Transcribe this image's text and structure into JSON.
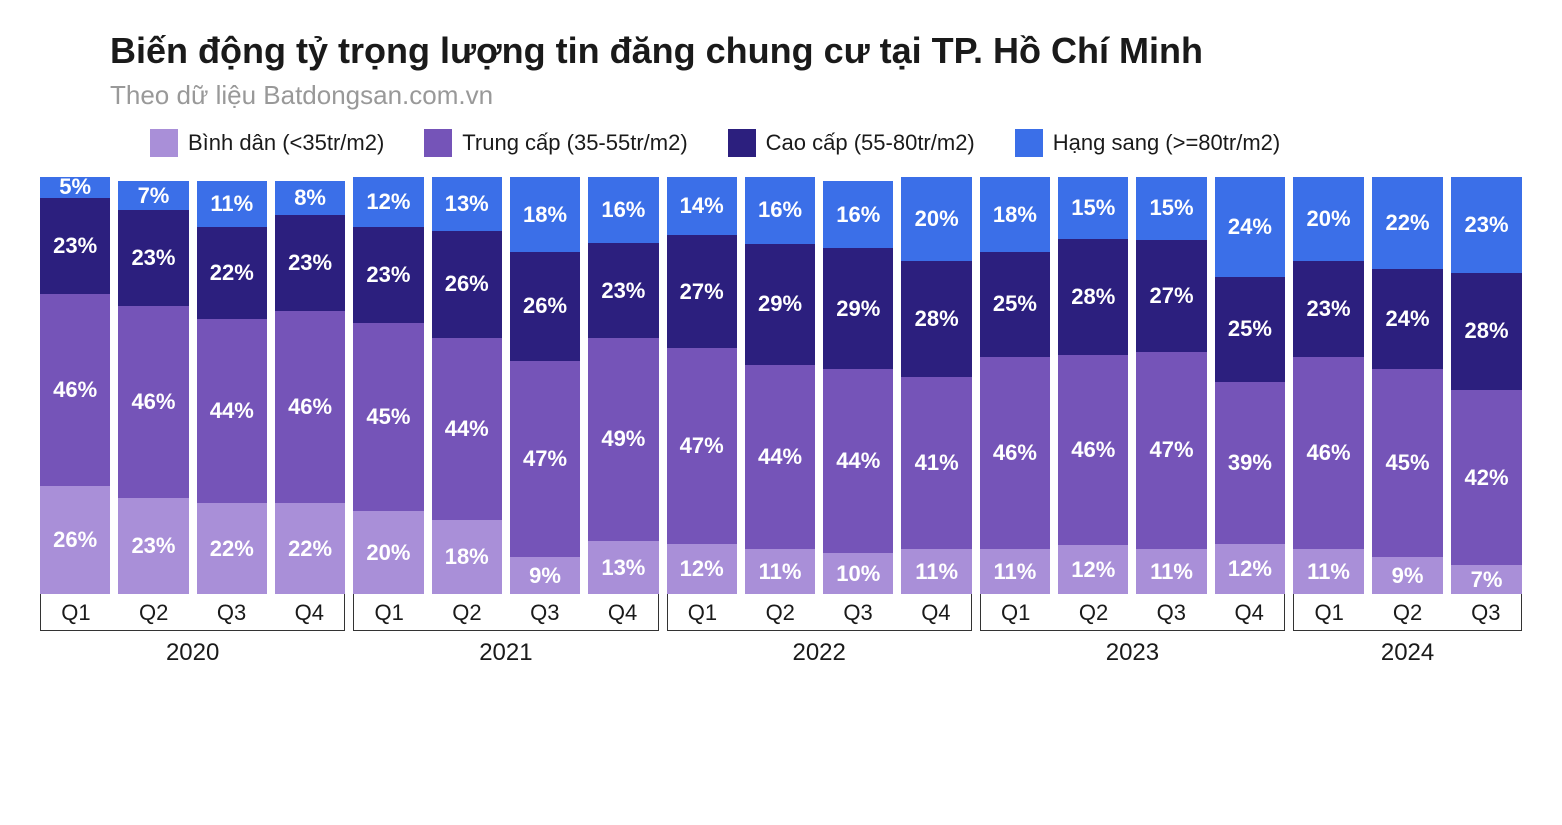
{
  "chart": {
    "type": "stacked_bar",
    "title": "Biến động tỷ trọng lượng tin đăng chung cư tại TP. Hồ Chí Minh",
    "subtitle": "Theo dữ liệu Batdongsan.com.vn",
    "title_fontsize": 36,
    "subtitle_fontsize": 26,
    "title_color": "#1a1a1a",
    "subtitle_color": "#999999",
    "background_color": "#ffffff",
    "label_color": "#ffffff",
    "label_fontsize": 22,
    "legend": [
      {
        "label": "Bình dân (<35tr/m2)",
        "color": "#a98fd8"
      },
      {
        "label": "Trung cấp (35-55tr/m2)",
        "color": "#7554b8"
      },
      {
        "label": "Cao cấp (55-80tr/m2)",
        "color": "#2c1f7e"
      },
      {
        "label": "Hạng sang (>=80tr/m2)",
        "color": "#3b6fe8"
      }
    ],
    "series_colors": [
      "#a98fd8",
      "#7554b8",
      "#2c1f7e",
      "#3b6fe8"
    ],
    "years": [
      {
        "year": "2020",
        "quarters": [
          {
            "q": "Q1",
            "values": [
              26,
              46,
              23,
              5
            ]
          },
          {
            "q": "Q2",
            "values": [
              23,
              46,
              23,
              7
            ]
          },
          {
            "q": "Q3",
            "values": [
              22,
              44,
              22,
              11
            ]
          },
          {
            "q": "Q4",
            "values": [
              22,
              46,
              23,
              8
            ]
          }
        ]
      },
      {
        "year": "2021",
        "quarters": [
          {
            "q": "Q1",
            "values": [
              20,
              45,
              23,
              12
            ]
          },
          {
            "q": "Q2",
            "values": [
              18,
              44,
              26,
              13
            ]
          },
          {
            "q": "Q3",
            "values": [
              9,
              47,
              26,
              18
            ]
          },
          {
            "q": "Q4",
            "values": [
              13,
              49,
              23,
              16
            ]
          }
        ]
      },
      {
        "year": "2022",
        "quarters": [
          {
            "q": "Q1",
            "values": [
              12,
              47,
              27,
              14
            ]
          },
          {
            "q": "Q2",
            "values": [
              11,
              44,
              29,
              16
            ]
          },
          {
            "q": "Q3",
            "values": [
              10,
              44,
              29,
              16
            ]
          },
          {
            "q": "Q4",
            "values": [
              11,
              41,
              28,
              20
            ]
          }
        ]
      },
      {
        "year": "2023",
        "quarters": [
          {
            "q": "Q1",
            "values": [
              11,
              46,
              25,
              18
            ]
          },
          {
            "q": "Q2",
            "values": [
              12,
              46,
              28,
              15
            ]
          },
          {
            "q": "Q3",
            "values": [
              11,
              47,
              27,
              15
            ]
          },
          {
            "q": "Q4",
            "values": [
              12,
              39,
              25,
              24
            ]
          }
        ]
      },
      {
        "year": "2024",
        "quarters": [
          {
            "q": "Q1",
            "values": [
              11,
              46,
              23,
              20
            ]
          },
          {
            "q": "Q2",
            "values": [
              9,
              45,
              24,
              22
            ]
          },
          {
            "q": "Q3",
            "values": [
              7,
              42,
              28,
              23
            ]
          }
        ]
      }
    ]
  }
}
